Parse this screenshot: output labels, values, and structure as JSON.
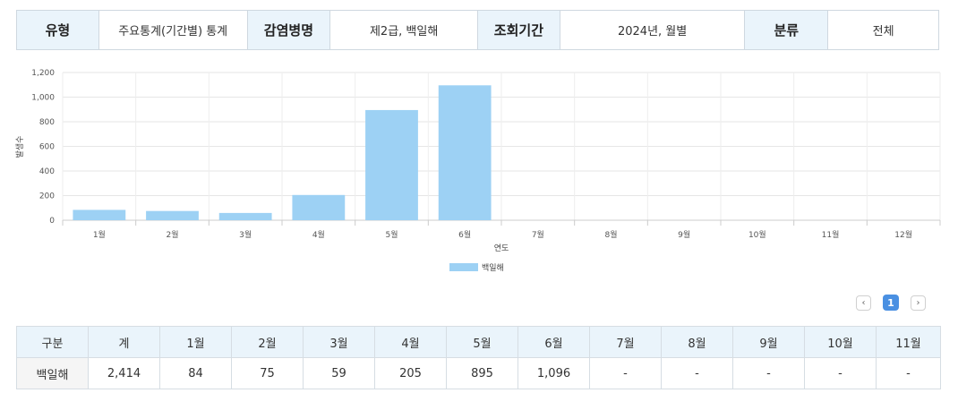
{
  "filter": [
    {
      "label": "유형",
      "value": "주요통계(기간별) 통계"
    },
    {
      "label": "감염병명",
      "value": "제2급, 백일해"
    },
    {
      "label": "조회기간",
      "value": "2024년, 월별"
    },
    {
      "label": "분류",
      "value": "전체"
    }
  ],
  "chart_data": {
    "type": "bar",
    "categories": [
      "1월",
      "2월",
      "3월",
      "4월",
      "5월",
      "6월",
      "7월",
      "8월",
      "9월",
      "10월",
      "11월",
      "12월"
    ],
    "series": [
      {
        "name": "백일해",
        "values": [
          84,
          75,
          59,
          205,
          895,
          1096,
          null,
          null,
          null,
          null,
          null,
          null
        ]
      }
    ],
    "ylim": [
      0,
      1200
    ],
    "yticks": [
      "0",
      "200",
      "400",
      "600",
      "800",
      "1,000",
      "1,200"
    ],
    "xlabel": "연도",
    "ylabel": "발생수",
    "bar_color": "#9dd1f4",
    "grid": true,
    "legend": "bottom"
  },
  "legend_label": "백일해",
  "pager": {
    "prev": "‹",
    "current": "1",
    "next": "›"
  },
  "table": {
    "headers": [
      "구분",
      "계",
      "1월",
      "2월",
      "3월",
      "4월",
      "5월",
      "6월",
      "7월",
      "8월",
      "9월",
      "10월",
      "11월"
    ],
    "rows": [
      [
        "백일해",
        "2,414",
        "84",
        "75",
        "59",
        "205",
        "895",
        "1,096",
        "-",
        "-",
        "-",
        "-",
        "-"
      ]
    ]
  }
}
